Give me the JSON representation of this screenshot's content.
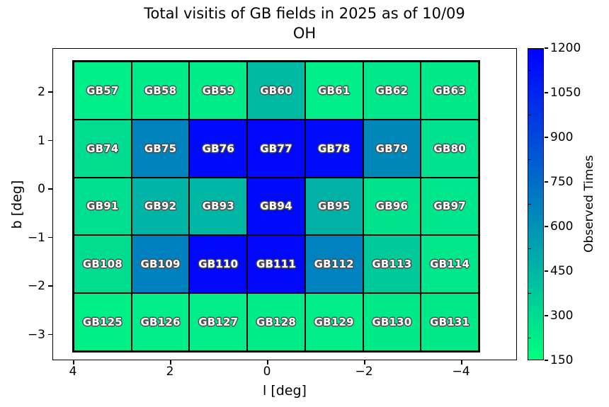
{
  "title": {
    "line1": "Total visitis of GB fields in 2025 as of 10/09",
    "line2": "OH"
  },
  "chart_data": {
    "type": "heatmap",
    "xlabel": "l [deg]",
    "ylabel": "b [deg]",
    "x_axis": {
      "tick_values": [
        4,
        2,
        0,
        -2,
        -4
      ],
      "tick_labels": [
        "4",
        "2",
        "0",
        "−2",
        "−4"
      ],
      "inverted": true
    },
    "y_axis": {
      "tick_values": [
        2,
        1,
        0,
        -1,
        -2,
        -3
      ],
      "tick_labels": [
        "2",
        "1",
        "0",
        "−1",
        "−2",
        "−3"
      ]
    },
    "colorbar": {
      "label": "Observed Times",
      "vmin": 150,
      "vmax": 1200,
      "tick_values": [
        150,
        300,
        450,
        600,
        750,
        900,
        1050,
        1200
      ],
      "tick_labels": [
        "150",
        "300",
        "450",
        "600",
        "750",
        "900",
        "1050",
        "1200"
      ],
      "minor_tick_values": [
        225,
        375,
        525,
        675,
        825,
        975,
        1125
      ],
      "colormap": "winter_r",
      "min_color": "#00ff80",
      "max_color": "#0000ff"
    },
    "grid": {
      "rows": 5,
      "cols": 7,
      "edge_color": "#000000",
      "cells": [
        [
          {
            "label": "GB57",
            "value": 220
          },
          {
            "label": "GB58",
            "value": 230
          },
          {
            "label": "GB59",
            "value": 230
          },
          {
            "label": "GB60",
            "value": 430
          },
          {
            "label": "GB61",
            "value": 220
          },
          {
            "label": "GB62",
            "value": 250
          },
          {
            "label": "GB63",
            "value": 235
          }
        ],
        [
          {
            "label": "GB74",
            "value": 290
          },
          {
            "label": "GB75",
            "value": 660
          },
          {
            "label": "GB76",
            "value": 1160
          },
          {
            "label": "GB77",
            "value": 1170
          },
          {
            "label": "GB78",
            "value": 1150
          },
          {
            "label": "GB79",
            "value": 640
          },
          {
            "label": "GB80",
            "value": 270
          }
        ],
        [
          {
            "label": "GB91",
            "value": 280
          },
          {
            "label": "GB92",
            "value": 455
          },
          {
            "label": "GB93",
            "value": 450
          },
          {
            "label": "GB94",
            "value": 1160
          },
          {
            "label": "GB95",
            "value": 470
          },
          {
            "label": "GB96",
            "value": 265
          },
          {
            "label": "GB97",
            "value": 255
          }
        ],
        [
          {
            "label": "GB108",
            "value": 290
          },
          {
            "label": "GB109",
            "value": 670
          },
          {
            "label": "GB110",
            "value": 1170
          },
          {
            "label": "GB111",
            "value": 1170
          },
          {
            "label": "GB112",
            "value": 665
          },
          {
            "label": "GB113",
            "value": 370
          },
          {
            "label": "GB114",
            "value": 250
          }
        ],
        [
          {
            "label": "GB125",
            "value": 215
          },
          {
            "label": "GB126",
            "value": 225
          },
          {
            "label": "GB127",
            "value": 225
          },
          {
            "label": "GB128",
            "value": 230
          },
          {
            "label": "GB129",
            "value": 225
          },
          {
            "label": "GB130",
            "value": 235
          },
          {
            "label": "GB131",
            "value": 235
          }
        ]
      ]
    }
  }
}
